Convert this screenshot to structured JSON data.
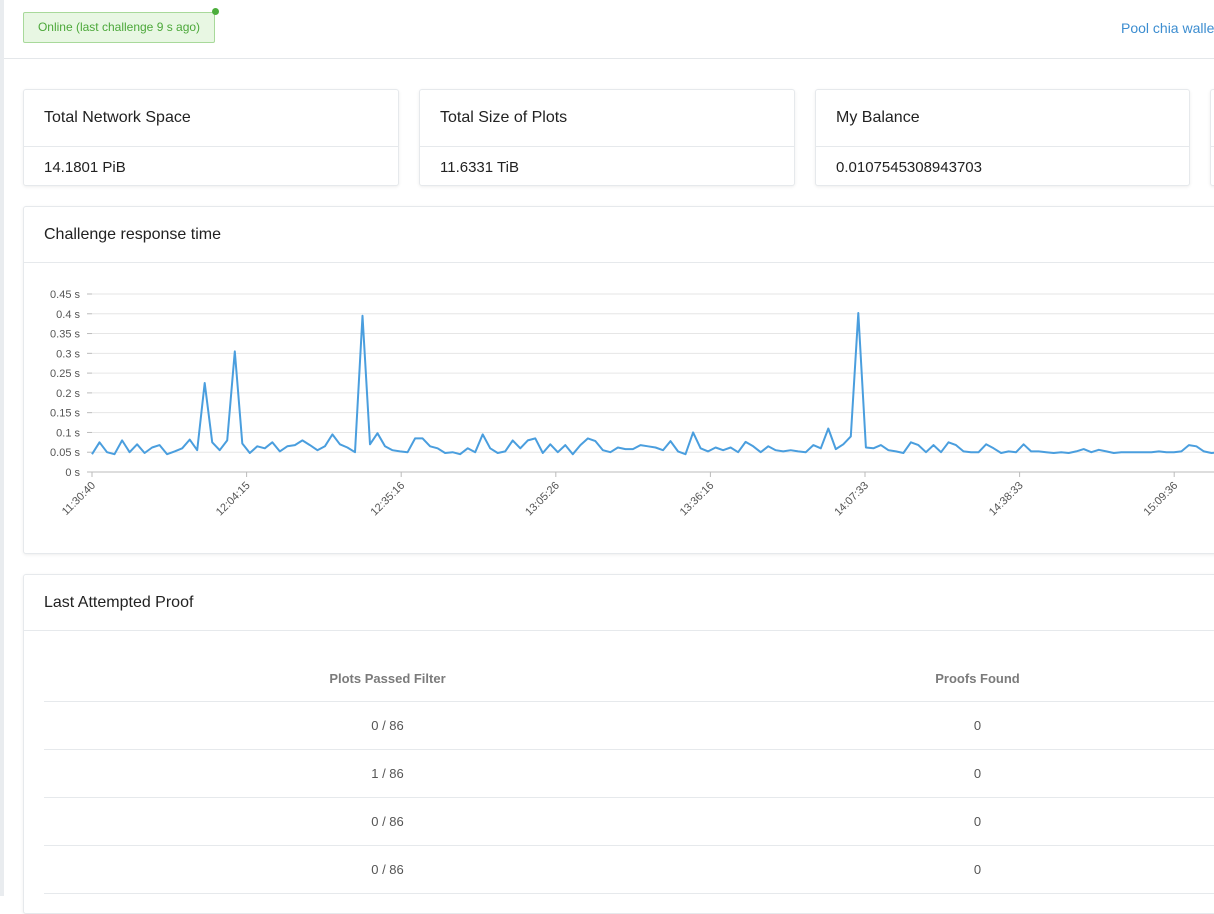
{
  "status": {
    "text": "Online (last challenge 9 s ago)"
  },
  "header": {
    "pool_link": "Pool chia walle"
  },
  "stats": [
    {
      "title": "Total Network Space",
      "value": "14.1801 PiB"
    },
    {
      "title": "Total Size of Plots",
      "value": "11.6331 TiB"
    },
    {
      "title": "My Balance",
      "value": "0.0107545308943703"
    }
  ],
  "chart_section": {
    "title": "Challenge response time"
  },
  "chart_data": {
    "type": "line",
    "title": "",
    "xlabel": "",
    "ylabel": "",
    "y_unit": "s",
    "ylim": [
      0,
      0.45
    ],
    "yticks": [
      "0 s",
      "0.05 s",
      "0.1 s",
      "0.15 s",
      "0.2 s",
      "0.25 s",
      "0.3 s",
      "0.35 s",
      "0.4 s",
      "0.45 s"
    ],
    "xticks": [
      "11:30:40",
      "12:04:15",
      "12:35:16",
      "13:05:26",
      "13:36:16",
      "14:07:33",
      "14:38:33",
      "15:09:36"
    ],
    "line_color": "#4a9ede",
    "grid": true,
    "series": [
      {
        "values": [
          0.045,
          0.075,
          0.05,
          0.045,
          0.08,
          0.05,
          0.07,
          0.048,
          0.062,
          0.068,
          0.045,
          0.052,
          0.06,
          0.082,
          0.055,
          0.225,
          0.075,
          0.055,
          0.08,
          0.305,
          0.072,
          0.048,
          0.065,
          0.06,
          0.075,
          0.052,
          0.065,
          0.068,
          0.08,
          0.068,
          0.055,
          0.065,
          0.095,
          0.07,
          0.062,
          0.05,
          0.395,
          0.07,
          0.098,
          0.065,
          0.055,
          0.052,
          0.05,
          0.085,
          0.085,
          0.065,
          0.06,
          0.048,
          0.05,
          0.045,
          0.06,
          0.05,
          0.095,
          0.06,
          0.048,
          0.052,
          0.08,
          0.06,
          0.08,
          0.085,
          0.048,
          0.07,
          0.05,
          0.068,
          0.045,
          0.068,
          0.085,
          0.078,
          0.055,
          0.05,
          0.062,
          0.058,
          0.058,
          0.068,
          0.065,
          0.062,
          0.055,
          0.078,
          0.052,
          0.045,
          0.1,
          0.06,
          0.052,
          0.062,
          0.055,
          0.062,
          0.05,
          0.076,
          0.065,
          0.05,
          0.065,
          0.055,
          0.052,
          0.055,
          0.052,
          0.05,
          0.068,
          0.06,
          0.11,
          0.058,
          0.07,
          0.09,
          0.402,
          0.062,
          0.06,
          0.068,
          0.055,
          0.052,
          0.048,
          0.075,
          0.068,
          0.05,
          0.068,
          0.05,
          0.075,
          0.068,
          0.052,
          0.05,
          0.05,
          0.07,
          0.06,
          0.048,
          0.052,
          0.05,
          0.07,
          0.052,
          0.052,
          0.05,
          0.048,
          0.05,
          0.048,
          0.052,
          0.058,
          0.05,
          0.056,
          0.052,
          0.048,
          0.05,
          0.05,
          0.05,
          0.05,
          0.05,
          0.052,
          0.05,
          0.05,
          0.052,
          0.068,
          0.065,
          0.052,
          0.048,
          0.05,
          0.068,
          0.055
        ]
      }
    ]
  },
  "proof_section": {
    "title": "Last Attempted Proof",
    "columns": [
      "Plots Passed Filter",
      "Proofs Found"
    ],
    "rows": [
      [
        "0 / 86",
        "0"
      ],
      [
        "1 / 86",
        "0"
      ],
      [
        "0 / 86",
        "0"
      ],
      [
        "0 / 86",
        "0"
      ]
    ]
  }
}
